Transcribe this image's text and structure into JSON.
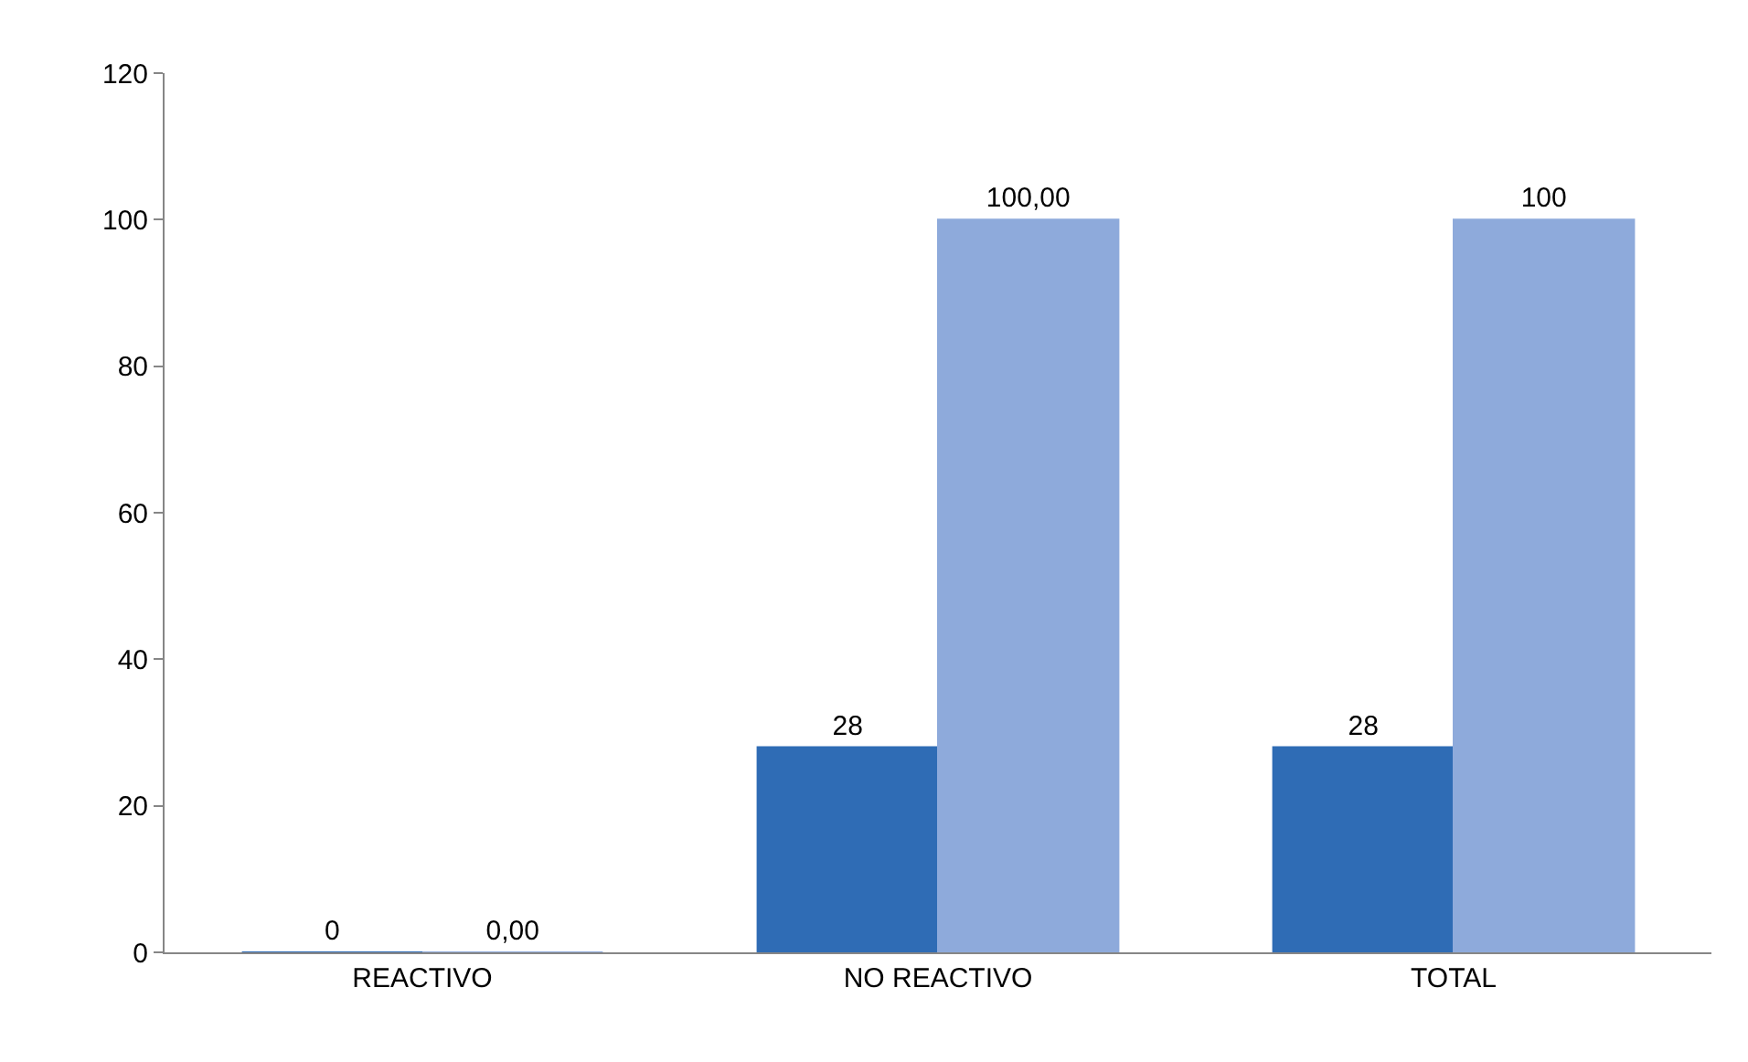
{
  "chart_data": {
    "type": "bar",
    "categories": [
      "REACTIVO",
      "NO REACTIVO",
      "TOTAL"
    ],
    "series": [
      {
        "color": "#2f6cb5",
        "values": [
          0,
          28,
          28
        ],
        "value_labels": [
          "0",
          "28",
          "28"
        ]
      },
      {
        "color": "#8eaadb",
        "values": [
          0,
          100,
          100
        ],
        "value_labels": [
          "0,00",
          "100,00",
          "100"
        ]
      }
    ],
    "ylim": [
      0,
      120
    ],
    "yticks": [
      0,
      20,
      40,
      60,
      80,
      100,
      120
    ],
    "grid": false,
    "legend": false
  }
}
